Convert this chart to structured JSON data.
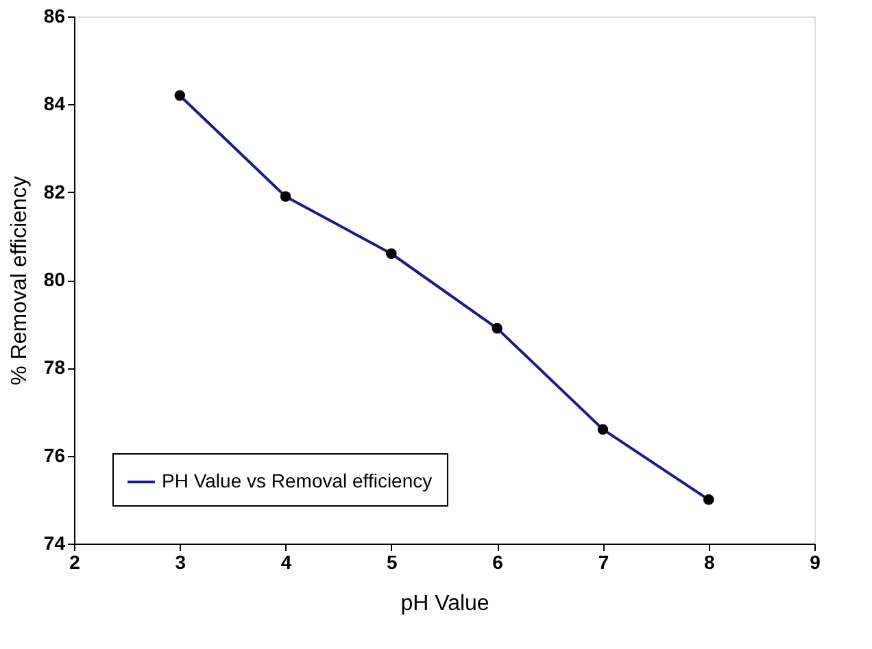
{
  "chart_data": {
    "type": "line",
    "xlabel": "pH Value",
    "ylabel": "% Removal efficiency",
    "x": [
      3,
      4,
      5,
      6,
      7,
      8
    ],
    "series": [
      {
        "name": "PH Value vs Removal efficiency",
        "color": "#1a1a8c",
        "values": [
          84.2,
          81.9,
          80.6,
          78.9,
          76.6,
          75.0
        ]
      }
    ],
    "xlim": [
      2,
      9
    ],
    "xticks": [
      2,
      3,
      4,
      5,
      6,
      7,
      8,
      9
    ],
    "ylim": [
      74,
      86
    ],
    "yticks": [
      74,
      76,
      78,
      80,
      82,
      84,
      86
    ],
    "grid": false,
    "legend": "bottom left",
    "marker": "circle",
    "line_style": "solid"
  }
}
